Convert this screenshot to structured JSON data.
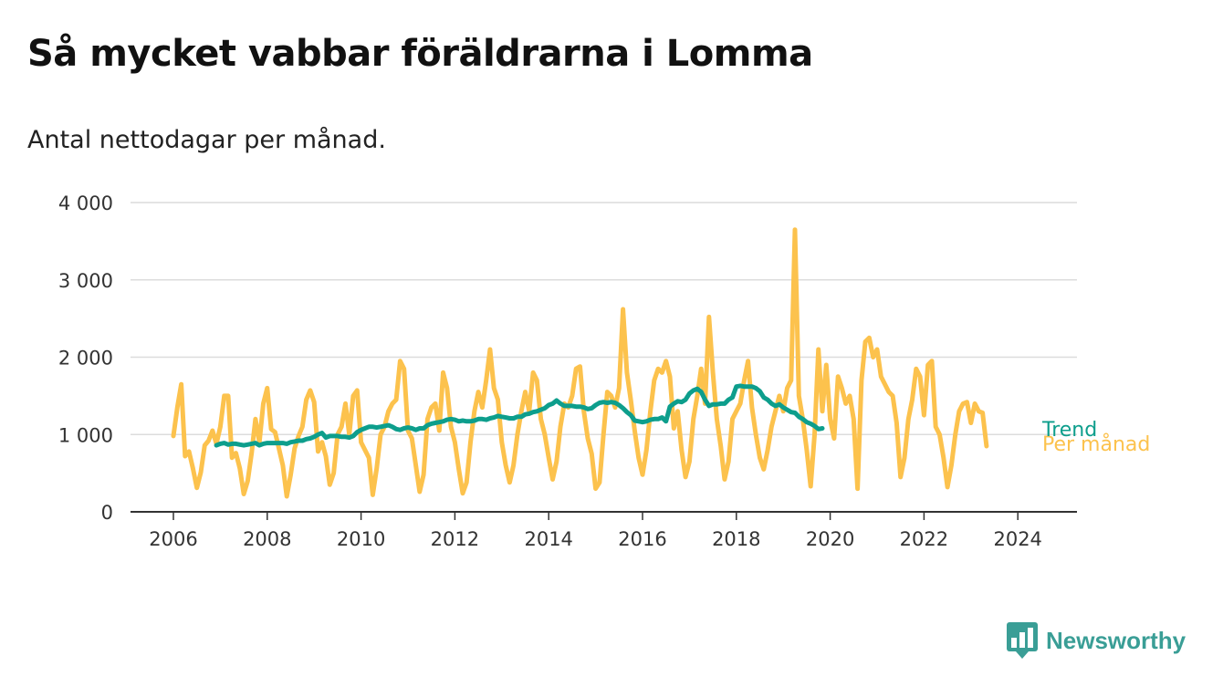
{
  "title": "Så mycket vabbar föräldrarna i Lomma",
  "subtitle": "Antal nettodagar per månad.",
  "brand": {
    "name": "Newsworthy",
    "icon": "bar-chart-chat-icon",
    "color": "#3a9e96"
  },
  "chart_data": {
    "type": "line",
    "title": "Så mycket vabbar föräldrarna i Lomma",
    "subtitle": "Antal nettodagar per månad.",
    "xlabel": "",
    "ylabel": "",
    "xlim": [
      2005.2,
      2025.1
    ],
    "ylim": [
      0,
      4000
    ],
    "yticks": [
      0,
      1000,
      2000,
      3000,
      4000
    ],
    "ytick_labels": [
      "0",
      "1 000",
      "2 000",
      "3 000",
      "4 000"
    ],
    "xticks": [
      2006,
      2008,
      2010,
      2012,
      2014,
      2016,
      2018,
      2020,
      2022,
      2024
    ],
    "xtick_labels": [
      "2006",
      "2008",
      "2010",
      "2012",
      "2014",
      "2016",
      "2018",
      "2020",
      "2022",
      "2024"
    ],
    "grid": true,
    "legend": "inline-right",
    "series": [
      {
        "name": "Per månad",
        "color": "#fcc24d",
        "x_start": 2006.0,
        "x_step": 0.0833333,
        "values": [
          980,
          1350,
          1650,
          720,
          780,
          560,
          310,
          510,
          860,
          920,
          1050,
          880,
          1100,
          1500,
          1500,
          700,
          760,
          560,
          230,
          400,
          760,
          1200,
          900,
          1400,
          1600,
          1070,
          1030,
          820,
          600,
          200,
          480,
          820,
          980,
          1100,
          1450,
          1570,
          1420,
          780,
          900,
          720,
          350,
          500,
          1000,
          1100,
          1400,
          1000,
          1500,
          1570,
          900,
          800,
          700,
          220,
          560,
          1000,
          1100,
          1300,
          1400,
          1450,
          1950,
          1850,
          1050,
          950,
          600,
          260,
          480,
          1200,
          1350,
          1400,
          1050,
          1800,
          1600,
          1100,
          900,
          550,
          240,
          380,
          900,
          1300,
          1550,
          1350,
          1700,
          2100,
          1600,
          1450,
          900,
          600,
          380,
          600,
          1000,
          1300,
          1550,
          1300,
          1800,
          1700,
          1200,
          1000,
          700,
          420,
          650,
          1100,
          1400,
          1350,
          1500,
          1850,
          1880,
          1300,
          950,
          750,
          300,
          380,
          1000,
          1550,
          1500,
          1350,
          1600,
          2620,
          1800,
          1450,
          1050,
          700,
          480,
          800,
          1300,
          1700,
          1850,
          1800,
          1950,
          1750,
          1080,
          1300,
          800,
          450,
          650,
          1200,
          1500,
          1850,
          1400,
          2520,
          1800,
          1200,
          850,
          420,
          650,
          1200,
          1300,
          1400,
          1700,
          1950,
          1350,
          1000,
          700,
          550,
          800,
          1100,
          1300,
          1500,
          1300,
          1600,
          1700,
          3650,
          1500,
          1200,
          800,
          330,
          1000,
          2100,
          1300,
          1900,
          1200,
          950,
          1750,
          1600,
          1400,
          1500,
          1200,
          300,
          1700,
          2200,
          2250,
          2000,
          2100,
          1750,
          1650,
          1550,
          1500,
          1150,
          450,
          700,
          1200,
          1450,
          1850,
          1750,
          1250,
          1900,
          1950,
          1100,
          1000,
          700,
          320,
          600,
          1000,
          1300,
          1400,
          1420,
          1150,
          1400,
          1300,
          1280,
          850
        ]
      },
      {
        "name": "Trend",
        "color": "#0d9e8c",
        "x_start": 2006.9167,
        "x_step": 0.0833333,
        "values": [
          860,
          880,
          890,
          870,
          880,
          880,
          870,
          860,
          870,
          880,
          890,
          860,
          880,
          890,
          890,
          890,
          890,
          890,
          880,
          900,
          910,
          920,
          920,
          940,
          950,
          970,
          1000,
          1020,
          960,
          980,
          980,
          980,
          970,
          970,
          960,
          980,
          1030,
          1060,
          1080,
          1100,
          1100,
          1090,
          1100,
          1110,
          1120,
          1100,
          1070,
          1060,
          1080,
          1090,
          1080,
          1060,
          1080,
          1080,
          1120,
          1140,
          1150,
          1160,
          1170,
          1190,
          1200,
          1190,
          1170,
          1180,
          1170,
          1170,
          1180,
          1200,
          1200,
          1190,
          1210,
          1220,
          1240,
          1230,
          1220,
          1210,
          1210,
          1230,
          1230,
          1260,
          1270,
          1290,
          1300,
          1320,
          1340,
          1380,
          1400,
          1440,
          1400,
          1370,
          1370,
          1370,
          1360,
          1360,
          1350,
          1330,
          1340,
          1380,
          1410,
          1420,
          1410,
          1420,
          1410,
          1380,
          1340,
          1290,
          1250,
          1180,
          1170,
          1160,
          1170,
          1190,
          1200,
          1200,
          1220,
          1170,
          1360,
          1400,
          1430,
          1420,
          1450,
          1530,
          1570,
          1590,
          1550,
          1450,
          1370,
          1390,
          1390,
          1400,
          1400,
          1450,
          1480,
          1620,
          1630,
          1620,
          1620,
          1620,
          1600,
          1560,
          1480,
          1450,
          1400,
          1370,
          1390,
          1350,
          1320,
          1290,
          1280,
          1230,
          1200,
          1160,
          1140,
          1110,
          1070,
          1080
        ]
      }
    ]
  }
}
